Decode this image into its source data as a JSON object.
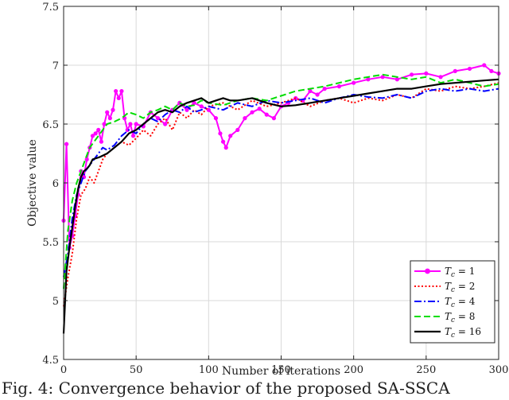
{
  "caption": "Fig. 4: Convergence behavior of the proposed SA-SSCA",
  "chart_data": {
    "type": "line",
    "xlabel": "Number of iterations",
    "ylabel": "Objective value",
    "xlim": [
      0,
      300
    ],
    "ylim": [
      4.5,
      7.5
    ],
    "xticks": [
      "0",
      "50",
      "100",
      "150",
      "200",
      "250",
      "300"
    ],
    "yticks": [
      "4.5",
      "5",
      "5.5",
      "6",
      "6.5",
      "7",
      "7.5"
    ],
    "grid": true,
    "legend_position": "bottom-right",
    "series": [
      {
        "name": "T_c = 1",
        "label_main": "T",
        "label_sub": "c",
        "label_val": " = 1",
        "color": "#ff00ff",
        "style": "solid-marker",
        "x": [
          0,
          2,
          4,
          6,
          8,
          10,
          12,
          14,
          16,
          18,
          20,
          22,
          24,
          26,
          28,
          30,
          32,
          34,
          36,
          38,
          40,
          42,
          44,
          46,
          48,
          50,
          55,
          60,
          65,
          70,
          75,
          80,
          85,
          90,
          95,
          100,
          105,
          108,
          110,
          112,
          115,
          120,
          125,
          130,
          135,
          140,
          145,
          150,
          155,
          160,
          165,
          170,
          175,
          180,
          190,
          200,
          210,
          220,
          230,
          240,
          250,
          260,
          270,
          280,
          290,
          295,
          300
        ],
        "y": [
          5.68,
          6.33,
          5.45,
          5.55,
          5.72,
          5.9,
          6.1,
          6.05,
          6.2,
          6.3,
          6.4,
          6.42,
          6.45,
          6.35,
          6.5,
          6.6,
          6.55,
          6.62,
          6.78,
          6.72,
          6.78,
          6.55,
          6.45,
          6.5,
          6.4,
          6.5,
          6.48,
          6.6,
          6.55,
          6.5,
          6.62,
          6.68,
          6.62,
          6.68,
          6.65,
          6.62,
          6.55,
          6.42,
          6.35,
          6.3,
          6.4,
          6.45,
          6.55,
          6.6,
          6.63,
          6.58,
          6.55,
          6.65,
          6.68,
          6.72,
          6.7,
          6.78,
          6.75,
          6.8,
          6.82,
          6.85,
          6.88,
          6.9,
          6.88,
          6.92,
          6.93,
          6.9,
          6.95,
          6.97,
          7.0,
          6.95,
          6.93
        ]
      },
      {
        "name": "T_c = 2",
        "label_main": "T",
        "label_sub": "c",
        "label_val": " = 2",
        "color": "#ff0000",
        "style": "dotted",
        "x": [
          0,
          3,
          6,
          9,
          12,
          15,
          18,
          21,
          24,
          27,
          30,
          35,
          40,
          45,
          50,
          55,
          60,
          65,
          70,
          75,
          80,
          85,
          90,
          95,
          100,
          110,
          120,
          130,
          140,
          150,
          160,
          170,
          180,
          190,
          200,
          210,
          220,
          230,
          240,
          250,
          260,
          270,
          280,
          290,
          300
        ],
        "y": [
          4.95,
          5.2,
          5.4,
          5.7,
          5.9,
          5.95,
          6.05,
          6.0,
          6.1,
          6.2,
          6.25,
          6.3,
          6.35,
          6.32,
          6.38,
          6.45,
          6.4,
          6.5,
          6.55,
          6.45,
          6.6,
          6.55,
          6.62,
          6.58,
          6.65,
          6.68,
          6.62,
          6.7,
          6.65,
          6.68,
          6.72,
          6.65,
          6.7,
          6.72,
          6.68,
          6.72,
          6.7,
          6.75,
          6.72,
          6.8,
          6.78,
          6.82,
          6.8,
          6.82,
          6.85
        ]
      },
      {
        "name": "T_c = 4",
        "label_main": "T",
        "label_sub": "c",
        "label_val": " = 4",
        "color": "#0000ff",
        "style": "dashdot",
        "x": [
          0,
          3,
          6,
          9,
          12,
          15,
          18,
          21,
          24,
          27,
          30,
          35,
          40,
          45,
          50,
          55,
          60,
          65,
          70,
          75,
          80,
          85,
          90,
          95,
          100,
          110,
          120,
          130,
          140,
          150,
          160,
          170,
          180,
          190,
          200,
          210,
          220,
          230,
          240,
          250,
          260,
          270,
          280,
          290,
          300
        ],
        "y": [
          5.2,
          5.4,
          5.7,
          5.9,
          6.0,
          6.1,
          6.15,
          6.2,
          6.25,
          6.3,
          6.28,
          6.32,
          6.4,
          6.45,
          6.42,
          6.5,
          6.55,
          6.52,
          6.58,
          6.62,
          6.6,
          6.65,
          6.6,
          6.62,
          6.65,
          6.62,
          6.68,
          6.65,
          6.7,
          6.68,
          6.7,
          6.72,
          6.68,
          6.72,
          6.75,
          6.73,
          6.72,
          6.75,
          6.72,
          6.78,
          6.8,
          6.78,
          6.8,
          6.78,
          6.8
        ]
      },
      {
        "name": "T_c = 8",
        "label_main": "T",
        "label_sub": "c",
        "label_val": " = 8",
        "color": "#00dd00",
        "style": "dashed",
        "x": [
          0,
          3,
          6,
          9,
          12,
          15,
          18,
          21,
          24,
          27,
          30,
          35,
          40,
          45,
          50,
          55,
          60,
          65,
          70,
          75,
          80,
          85,
          90,
          95,
          100,
          110,
          120,
          130,
          140,
          150,
          160,
          170,
          180,
          190,
          200,
          210,
          220,
          230,
          240,
          250,
          260,
          270,
          280,
          290,
          300
        ],
        "y": [
          5.1,
          5.6,
          5.85,
          6.0,
          6.1,
          6.2,
          6.3,
          6.35,
          6.4,
          6.45,
          6.5,
          6.52,
          6.55,
          6.6,
          6.58,
          6.55,
          6.6,
          6.62,
          6.65,
          6.62,
          6.68,
          6.65,
          6.66,
          6.7,
          6.68,
          6.66,
          6.7,
          6.72,
          6.7,
          6.74,
          6.78,
          6.8,
          6.82,
          6.85,
          6.88,
          6.9,
          6.92,
          6.9,
          6.88,
          6.9,
          6.85,
          6.88,
          6.85,
          6.82,
          6.84
        ]
      },
      {
        "name": "T_c = 16",
        "label_main": "T",
        "label_sub": "c",
        "label_val": " = 16",
        "color": "#000000",
        "style": "solid",
        "x": [
          0,
          2,
          4,
          6,
          8,
          10,
          12,
          14,
          16,
          18,
          20,
          25,
          30,
          35,
          40,
          45,
          50,
          55,
          60,
          65,
          70,
          75,
          80,
          85,
          90,
          95,
          100,
          105,
          110,
          115,
          120,
          130,
          140,
          150,
          160,
          170,
          180,
          190,
          200,
          210,
          220,
          230,
          240,
          250,
          260,
          270,
          280,
          290,
          300
        ],
        "y": [
          4.72,
          5.25,
          5.45,
          5.62,
          5.8,
          5.95,
          6.05,
          6.1,
          6.12,
          6.15,
          6.2,
          6.22,
          6.25,
          6.3,
          6.35,
          6.42,
          6.45,
          6.5,
          6.55,
          6.6,
          6.62,
          6.6,
          6.65,
          6.68,
          6.7,
          6.72,
          6.68,
          6.7,
          6.72,
          6.7,
          6.7,
          6.72,
          6.68,
          6.65,
          6.66,
          6.68,
          6.7,
          6.72,
          6.74,
          6.76,
          6.78,
          6.8,
          6.8,
          6.82,
          6.84,
          6.85,
          6.86,
          6.87,
          6.88
        ]
      }
    ]
  }
}
